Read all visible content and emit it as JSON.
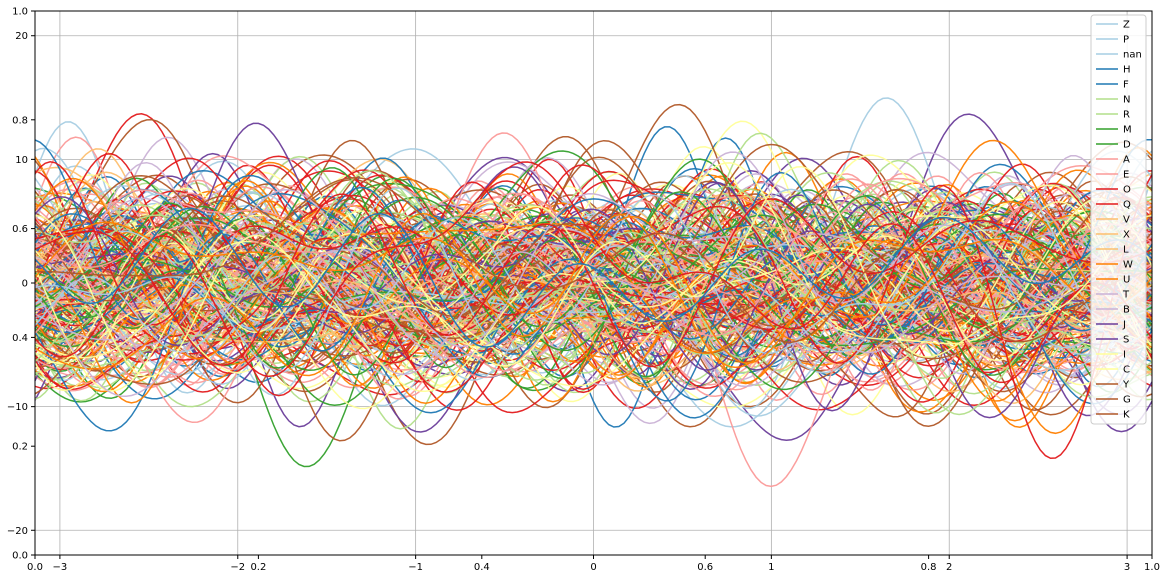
{
  "chart_data": {
    "type": "line",
    "title": "",
    "xlabel": "",
    "ylabel": "",
    "grid": true,
    "legend_placement": "top-right",
    "axes": {
      "inner": {
        "xlim": [
          -3.14,
          3.14
        ],
        "ylim": [
          -22,
          22
        ],
        "xticks": [
          -3,
          -2,
          -1,
          0,
          1,
          2,
          3
        ],
        "yticks": [
          -20,
          -10,
          0,
          10,
          20
        ]
      },
      "outer": {
        "xlim": [
          0.0,
          1.0
        ],
        "ylim": [
          0.0,
          1.0
        ],
        "xticks": [
          0.0,
          0.2,
          0.4,
          0.6,
          0.8,
          1.0
        ],
        "yticks": [
          0.0,
          0.2,
          0.4,
          0.6,
          0.8,
          1.0
        ]
      }
    },
    "palette": [
      "#a6cee3",
      "#1f78b4",
      "#b2df8a",
      "#33a02c",
      "#fb9a99",
      "#e31a1c",
      "#fdbf6f",
      "#ff7f00",
      "#cab2d6",
      "#6a3d9a",
      "#ffff99",
      "#b15928"
    ],
    "line_count_estimate": 320,
    "series": [
      {
        "name": "Z",
        "color": "#a6cee3"
      },
      {
        "name": "P",
        "color": "#a6cee3"
      },
      {
        "name": "nan",
        "color": "#a6cee3"
      },
      {
        "name": "H",
        "color": "#1f78b4"
      },
      {
        "name": "F",
        "color": "#1f78b4"
      },
      {
        "name": "N",
        "color": "#b2df8a"
      },
      {
        "name": "R",
        "color": "#b2df8a"
      },
      {
        "name": "M",
        "color": "#33a02c"
      },
      {
        "name": "D",
        "color": "#33a02c"
      },
      {
        "name": "A",
        "color": "#fb9a99"
      },
      {
        "name": "E",
        "color": "#fb9a99"
      },
      {
        "name": "O",
        "color": "#e31a1c"
      },
      {
        "name": "Q",
        "color": "#e31a1c"
      },
      {
        "name": "V",
        "color": "#fdbf6f"
      },
      {
        "name": "X",
        "color": "#fdbf6f"
      },
      {
        "name": "L",
        "color": "#fdbf6f"
      },
      {
        "name": "W",
        "color": "#ff7f00"
      },
      {
        "name": "U",
        "color": "#ff7f00"
      },
      {
        "name": "T",
        "color": "#cab2d6"
      },
      {
        "name": "B",
        "color": "#cab2d6"
      },
      {
        "name": "J",
        "color": "#6a3d9a"
      },
      {
        "name": "S",
        "color": "#6a3d9a"
      },
      {
        "name": "I",
        "color": "#ffff99"
      },
      {
        "name": "C",
        "color": "#ffff99"
      },
      {
        "name": "Y",
        "color": "#b15928"
      },
      {
        "name": "G",
        "color": "#b15928"
      },
      {
        "name": "K",
        "color": "#b15928"
      }
    ]
  }
}
